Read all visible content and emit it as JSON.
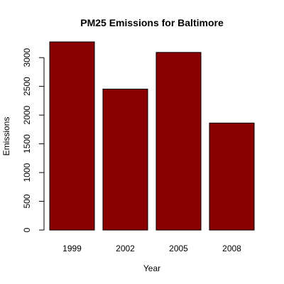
{
  "chart_data": {
    "type": "bar",
    "title": "PM25 Emissions for Baltimore",
    "xlabel": "Year",
    "ylabel": "Emissions",
    "categories": [
      "1999",
      "2002",
      "2005",
      "2008"
    ],
    "values": [
      3274,
      2453,
      3091,
      1862
    ],
    "ylim": [
      0,
      3274
    ],
    "yticks": [
      0,
      500,
      1000,
      1500,
      2000,
      2500,
      3000
    ],
    "bar_color": "#8B0000",
    "grid": false
  }
}
